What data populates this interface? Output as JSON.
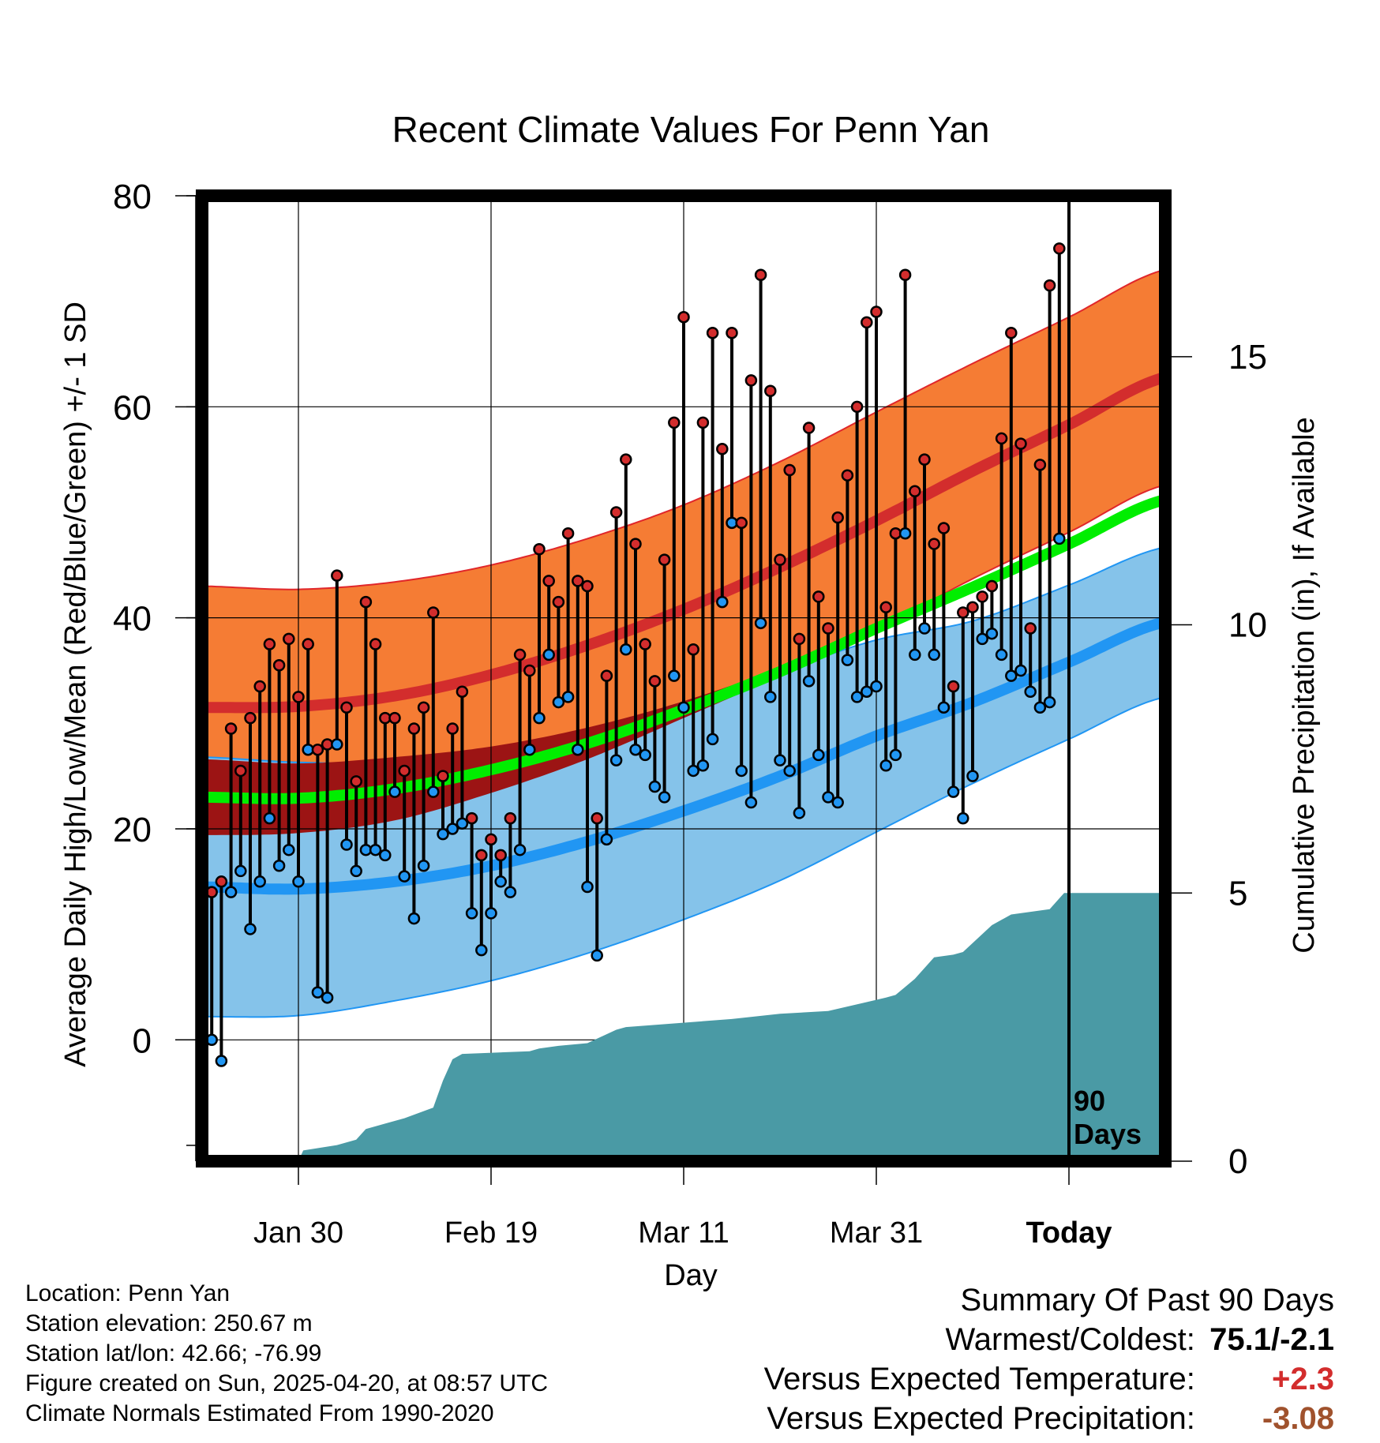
{
  "chart_data": {
    "type": "line",
    "title": "Recent Climate Values For Penn Yan",
    "xlabel": "Day",
    "ylabel": "Average Daily High/Low/Mean (Red/Blue/Green) +/- 1 SD",
    "ylabel_right": "Cumulative Precipitation (in), If Available",
    "ylim": [
      -11.5,
      80
    ],
    "yticks": [
      0,
      20,
      40,
      60,
      80
    ],
    "ylim_right": [
      0,
      18
    ],
    "yticks_right": [
      0,
      5,
      10,
      15
    ],
    "xlim": [
      -10,
      90
    ],
    "xticks": [
      {
        "label": "Jan 30",
        "x": 0
      },
      {
        "label": "Feb 19",
        "x": 20
      },
      {
        "label": "Mar 11",
        "x": 40
      },
      {
        "label": "Mar 31",
        "x": 60
      },
      {
        "label": "Today",
        "x": 80
      }
    ],
    "grid": true,
    "today_marker": {
      "x": 80,
      "label_line1": "90",
      "label_line2": "Days"
    },
    "colors": {
      "high_band": "#f57c34",
      "high_mean": "#d32d2d",
      "low_band": "#85c3ea",
      "low_mean": "#2196f3",
      "mean_normal": "#00ee00",
      "mean_band": "#9c1414",
      "precip": "#4a9aa5",
      "high_point": "#d32d2d",
      "low_point": "#2196f3"
    },
    "normals": {
      "x": [
        -10,
        0,
        10,
        20,
        30,
        40,
        50,
        60,
        70,
        80,
        90
      ],
      "high_mean": [
        31.5,
        31.6,
        32.6,
        34.6,
        37.4,
        40.8,
        44.8,
        49.2,
        53.9,
        58.3,
        62.8
      ],
      "high_sd": [
        11.5,
        11.1,
        10.8,
        10.4,
        10.1,
        9.9,
        10.0,
        10.3,
        10.2,
        10.2,
        10.2
      ],
      "low_mean": [
        14.5,
        14.3,
        15.0,
        16.5,
        18.8,
        21.7,
        25.0,
        28.8,
        32.0,
        35.8,
        39.6
      ],
      "low_sd": [
        12.3,
        12.0,
        11.3,
        10.9,
        10.6,
        10.3,
        9.9,
        9.1,
        7.7,
        7.3,
        7.1
      ],
      "mean": [
        23.0,
        22.9,
        23.8,
        25.6,
        28.1,
        31.3,
        34.9,
        39.0,
        42.9,
        47.0,
        51.2
      ],
      "mean_sd": [
        3.6,
        3.3,
        3.0,
        2.2,
        1.5,
        0.8,
        0.4,
        0.4,
        0.4,
        0.4,
        0.4
      ]
    },
    "daily": {
      "day_start": -10,
      "highs": [
        16,
        14,
        15,
        29.5,
        25.5,
        30.5,
        33.5,
        37.5,
        35.5,
        38,
        32.5,
        37.5,
        27.5,
        28,
        44,
        31.5,
        24.5,
        41.5,
        37.5,
        30.5,
        30.5,
        25.5,
        29.5,
        31.5,
        40.5,
        25,
        29.5,
        33,
        21,
        17.5,
        19,
        17.5,
        21,
        36.5,
        35,
        46.5,
        43.5,
        41.5,
        48,
        43.5,
        43,
        21,
        34.5,
        50,
        55,
        47,
        37.5,
        34,
        45.5,
        58.5,
        68.5,
        37,
        58.5,
        67,
        56,
        67,
        49,
        62.5,
        72.5,
        61.5,
        45.5,
        54,
        38,
        58,
        42,
        39,
        49.5,
        53.5,
        60,
        68,
        69,
        41,
        48,
        72.5,
        52,
        55,
        47,
        48.5,
        33.5,
        40.5,
        41,
        42,
        43,
        57,
        67,
        56.5,
        39,
        54.5,
        71.5,
        75
      ],
      "lows": [
        6,
        0,
        -2,
        14,
        16,
        10.5,
        15,
        21,
        16.5,
        18,
        15,
        27.5,
        4.5,
        4,
        28,
        18.5,
        16,
        18,
        18,
        17.5,
        23.5,
        15.5,
        11.5,
        16.5,
        23.5,
        19.5,
        20,
        20.5,
        12,
        8.5,
        12,
        15,
        14,
        18,
        27.5,
        30.5,
        36.5,
        32,
        32.5,
        27.5,
        14.5,
        8,
        19,
        26.5,
        37,
        27.5,
        27,
        24,
        23,
        34.5,
        31.5,
        25.5,
        26,
        28.5,
        41.5,
        49,
        25.5,
        22.5,
        39.5,
        32.5,
        26.5,
        25.5,
        21.5,
        34,
        27,
        23,
        22.5,
        36,
        32.5,
        33,
        33.5,
        26,
        27,
        48,
        36.5,
        39,
        36.5,
        31.5,
        23.5,
        21,
        25,
        38,
        38.5,
        36.5,
        34.5,
        35,
        33,
        31.5,
        32,
        47.5
      ]
    },
    "precip": {
      "x": [
        -10,
        0,
        0.5,
        4,
        6,
        7,
        9,
        11,
        14,
        15,
        16,
        17,
        24,
        25,
        27,
        30,
        33,
        34,
        45,
        50,
        55,
        61,
        62,
        64,
        66,
        68,
        69,
        72,
        74,
        76,
        78,
        79.5,
        90
      ],
      "cum": [
        0,
        0,
        0.2,
        0.3,
        0.4,
        0.6,
        0.7,
        0.8,
        1.0,
        1.5,
        1.9,
        2.0,
        2.05,
        2.1,
        2.15,
        2.2,
        2.45,
        2.5,
        2.65,
        2.75,
        2.8,
        3.05,
        3.1,
        3.4,
        3.8,
        3.85,
        3.9,
        4.4,
        4.6,
        4.65,
        4.7,
        5.0,
        5.0
      ]
    }
  },
  "footer": {
    "location": "Location: Penn Yan",
    "elevation": "Station elevation: 250.67 m",
    "latlon": "Station lat/lon: 42.66; -76.99",
    "created": "Figure created on Sun, 2025-04-20, at 08:57 UTC",
    "normals": "Climate Normals Estimated From 1990-2020"
  },
  "summary": {
    "title": "Summary Of Past 90 Days",
    "warmest_label": "Warmest/Coldest:",
    "warmest_value": "75.1/-2.1",
    "temp_label": "Versus Expected Temperature:",
    "temp_value": "+2.3",
    "temp_color": "#d32d2d",
    "precip_label": "Versus Expected Precipitation:",
    "precip_value": "-3.08",
    "precip_color": "#a0522d"
  }
}
